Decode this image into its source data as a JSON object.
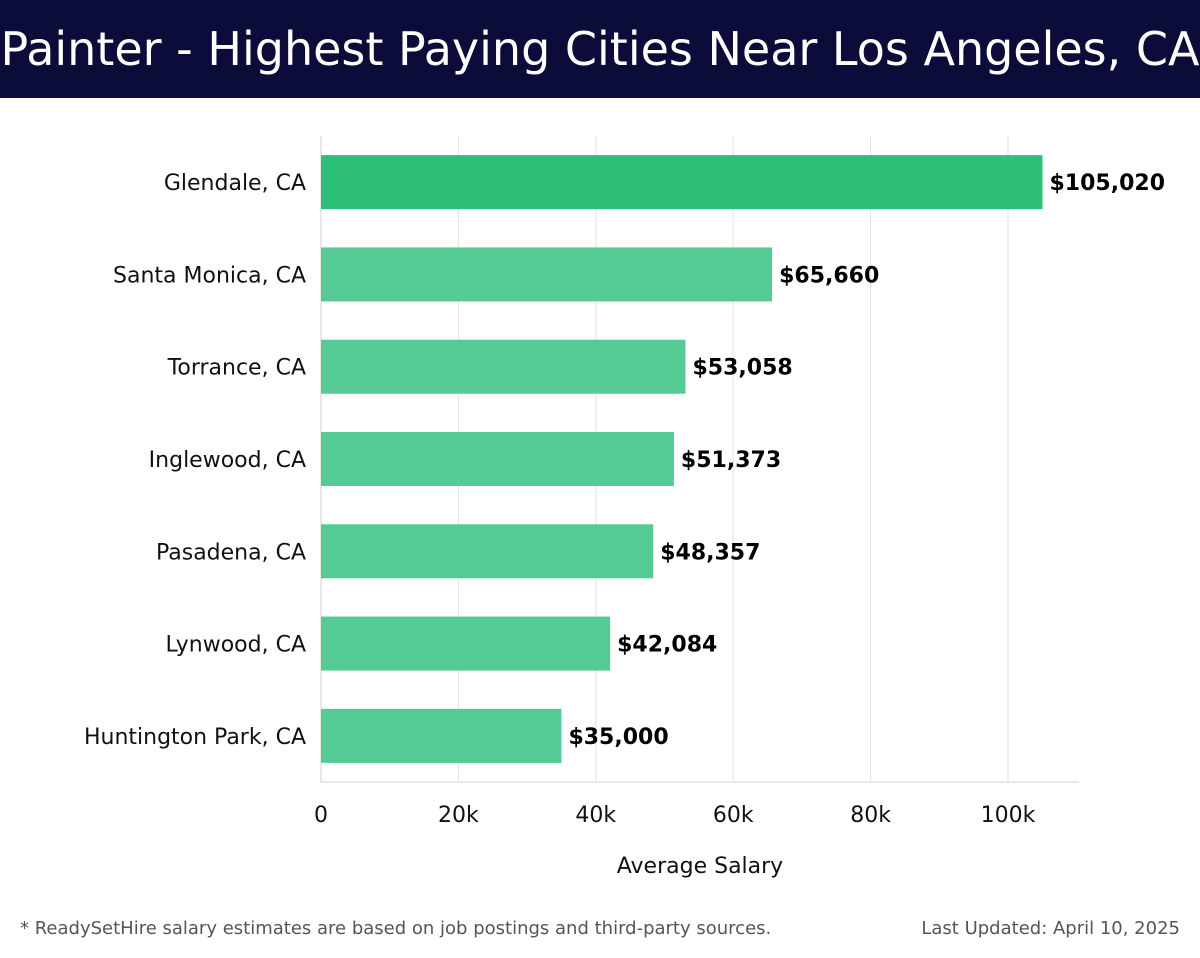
{
  "header": {
    "title": "Painter - Highest Paying Cities Near Los Angeles, CA"
  },
  "chart_data": {
    "type": "bar",
    "orientation": "horizontal",
    "categories": [
      "Glendale, CA",
      "Santa Monica, CA",
      "Torrance, CA",
      "Inglewood, CA",
      "Pasadena, CA",
      "Lynwood, CA",
      "Huntington Park, CA"
    ],
    "values": [
      105020,
      65660,
      53058,
      51373,
      48357,
      42084,
      35000
    ],
    "value_labels": [
      "$105,020",
      "$65,660",
      "$53,058",
      "$51,373",
      "$48,357",
      "$42,084",
      "$35,000"
    ],
    "title": "Painter - Highest Paying Cities Near Los Angeles, CA",
    "xlabel": "Average Salary",
    "ylabel": "",
    "xlim": [
      0,
      110000
    ],
    "xticks": [
      0,
      20000,
      40000,
      60000,
      80000,
      100000
    ],
    "xtick_labels": [
      "0",
      "20k",
      "40k",
      "60k",
      "80k",
      "100k"
    ],
    "grid": true,
    "colors": {
      "highlight": "#2dbe78",
      "bar": "#55ca95"
    }
  },
  "footer": {
    "note": "* ReadySetHire salary estimates are based on job postings and third-party sources.",
    "updated": "Last Updated: April 10, 2025"
  }
}
